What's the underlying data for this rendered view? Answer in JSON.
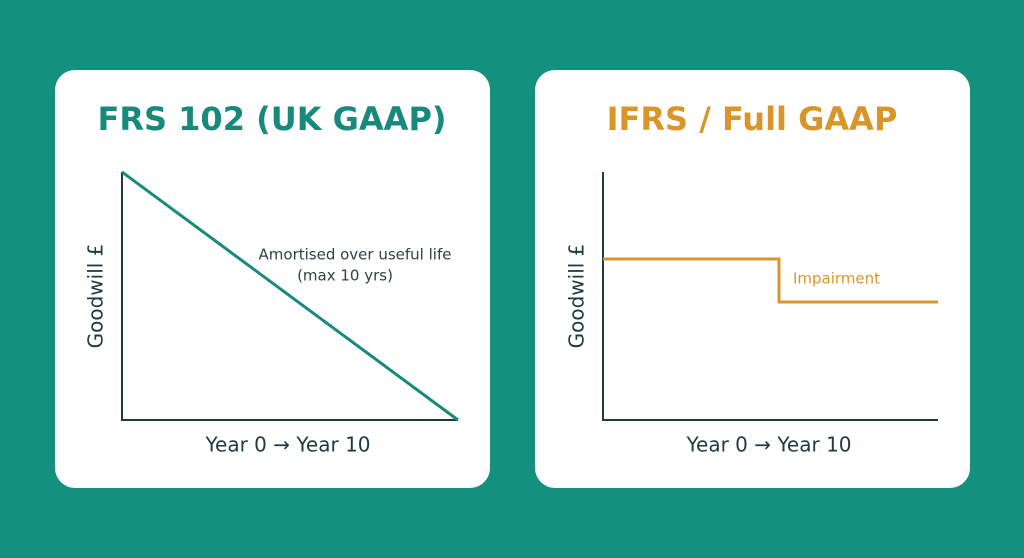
{
  "panels": [
    {
      "title": "FRS 102 (UK GAAP)",
      "y_label": "Goodwill £",
      "x_label": "Year 0 → Year 10",
      "annotation": [
        "Amortised over useful life",
        "(max 10 yrs)"
      ]
    },
    {
      "title": "IFRS / Full GAAP",
      "y_label": "Goodwill £",
      "x_label": "Year 0 → Year 10",
      "annotation": [
        "Impairment"
      ]
    }
  ]
}
